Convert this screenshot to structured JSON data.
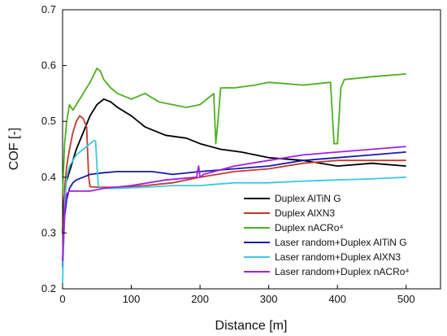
{
  "chart_data": {
    "type": "line",
    "title": "",
    "xlabel": "Distance [m]",
    "ylabel": "COF [-]",
    "xlim": [
      0,
      550
    ],
    "ylim": [
      0.2,
      0.7
    ],
    "xticks": [
      "0",
      "100",
      "200",
      "300",
      "400",
      "500"
    ],
    "yticks": [
      "0.2",
      "0.3",
      "0.4",
      "0.5",
      "0.6",
      "0.7"
    ],
    "grid": false,
    "legend_position": "bottom-right",
    "series": [
      {
        "name": "Duplex AlTiN G",
        "color": "#000000",
        "x": [
          0,
          2,
          5,
          10,
          15,
          20,
          30,
          40,
          50,
          60,
          70,
          80,
          100,
          120,
          150,
          180,
          200,
          230,
          260,
          300,
          350,
          400,
          450,
          500
        ],
        "y": [
          0.3,
          0.36,
          0.39,
          0.41,
          0.43,
          0.45,
          0.48,
          0.51,
          0.53,
          0.54,
          0.535,
          0.525,
          0.51,
          0.49,
          0.475,
          0.47,
          0.46,
          0.45,
          0.445,
          0.435,
          0.43,
          0.42,
          0.425,
          0.42
        ]
      },
      {
        "name": "Duplex AlXN3",
        "color": "#c0392b",
        "x": [
          0,
          3,
          6,
          10,
          15,
          20,
          25,
          30,
          35,
          38,
          40,
          50,
          80,
          120,
          160,
          200,
          250,
          300,
          350,
          400,
          450,
          500
        ],
        "y": [
          0.25,
          0.38,
          0.42,
          0.45,
          0.48,
          0.5,
          0.51,
          0.505,
          0.49,
          0.4,
          0.383,
          0.382,
          0.382,
          0.385,
          0.39,
          0.4,
          0.41,
          0.415,
          0.425,
          0.43,
          0.43,
          0.43
        ]
      },
      {
        "name": "Duplex nACRo⁴",
        "color": "#4caf1f",
        "x": [
          0,
          3,
          6,
          10,
          15,
          20,
          30,
          40,
          50,
          55,
          60,
          70,
          80,
          100,
          120,
          140,
          160,
          180,
          200,
          220,
          223,
          226,
          230,
          250,
          280,
          300,
          350,
          390,
          395,
          400,
          405,
          410,
          450,
          500
        ],
        "y": [
          0.37,
          0.46,
          0.5,
          0.53,
          0.52,
          0.53,
          0.55,
          0.57,
          0.595,
          0.59,
          0.575,
          0.56,
          0.55,
          0.54,
          0.55,
          0.535,
          0.53,
          0.525,
          0.53,
          0.55,
          0.46,
          0.5,
          0.56,
          0.56,
          0.565,
          0.57,
          0.565,
          0.57,
          0.46,
          0.46,
          0.56,
          0.575,
          0.58,
          0.585
        ]
      },
      {
        "name": "Laser random+Duplex AlTiN G",
        "color": "#1a1aa8",
        "x": [
          0,
          3,
          6,
          10,
          15,
          20,
          30,
          40,
          60,
          80,
          100,
          130,
          160,
          200,
          250,
          300,
          350,
          400,
          450,
          500
        ],
        "y": [
          0.24,
          0.33,
          0.36,
          0.38,
          0.39,
          0.395,
          0.4,
          0.405,
          0.408,
          0.41,
          0.41,
          0.41,
          0.405,
          0.41,
          0.415,
          0.42,
          0.43,
          0.435,
          0.44,
          0.445
        ]
      },
      {
        "name": "Laser random+Duplex AlXN3",
        "color": "#3cc8e6",
        "x": [
          0,
          3,
          6,
          10,
          15,
          20,
          30,
          40,
          45,
          48,
          50,
          52,
          55,
          80,
          120,
          160,
          200,
          250,
          300,
          350,
          400,
          450,
          500
        ],
        "y": [
          0.21,
          0.35,
          0.4,
          0.42,
          0.43,
          0.44,
          0.45,
          0.46,
          0.465,
          0.465,
          0.42,
          0.385,
          0.38,
          0.38,
          0.382,
          0.385,
          0.385,
          0.39,
          0.39,
          0.393,
          0.395,
          0.397,
          0.4
        ]
      },
      {
        "name": "Laser random+Duplex nACRo⁴",
        "color": "#a020e0",
        "x": [
          0,
          3,
          6,
          10,
          15,
          20,
          40,
          60,
          100,
          150,
          195,
          198,
          200,
          205,
          250,
          300,
          350,
          400,
          450,
          500
        ],
        "y": [
          0.25,
          0.34,
          0.37,
          0.375,
          0.375,
          0.375,
          0.375,
          0.38,
          0.385,
          0.395,
          0.4,
          0.42,
          0.4,
          0.405,
          0.42,
          0.43,
          0.44,
          0.445,
          0.45,
          0.455
        ]
      }
    ]
  }
}
